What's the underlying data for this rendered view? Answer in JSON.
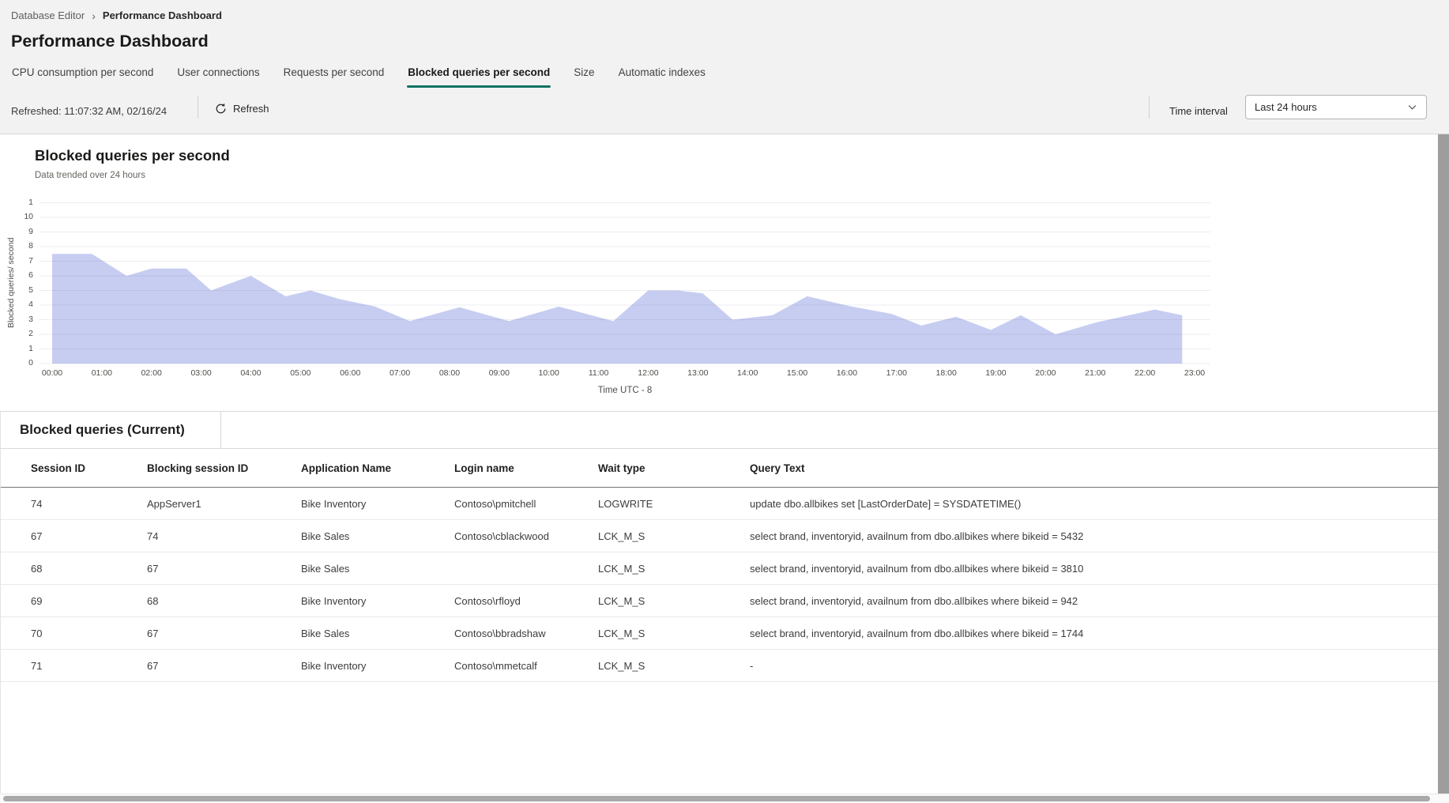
{
  "breadcrumb": {
    "items": [
      "Database Editor",
      "Performance Dashboard"
    ]
  },
  "page": {
    "title": "Performance Dashboard"
  },
  "tabs": {
    "active_index": 3,
    "items": [
      {
        "label": "CPU consumption per second"
      },
      {
        "label": "User connections"
      },
      {
        "label": "Requests per second"
      },
      {
        "label": "Blocked queries per second"
      },
      {
        "label": "Size"
      },
      {
        "label": "Automatic indexes"
      }
    ]
  },
  "toolbar": {
    "refreshed_label": "Refreshed: 11:07:32 AM, 02/16/24",
    "refresh_label": "Refresh",
    "time_interval_label": "Time interval",
    "time_interval_value": "Last 24 hours"
  },
  "icons": {
    "refresh": "circular-arrow",
    "dropdown": "chevron-down",
    "breadcrumb_separator": "chevron-right"
  },
  "colors": {
    "accent_teal_underline": "#0f7263",
    "chart_area_fill": "#c7cdf1",
    "header_background": "#f2f2f2",
    "gridline": "#ececec"
  },
  "chart_data": {
    "type": "area",
    "title": "Blocked queries per second",
    "subtitle": "Data trended over 24 hours",
    "ylabel": "Blocked queries/ second",
    "xlabel": "Time UTC - 8",
    "x_unit": "hours_after_midnight",
    "x": [
      0,
      0.8,
      1.5,
      2.0,
      2.7,
      3.2,
      4.0,
      4.7,
      5.2,
      5.8,
      6.5,
      7.2,
      8.2,
      9.2,
      10.2,
      11.3,
      12.0,
      12.6,
      13.1,
      13.7,
      14.5,
      15.2,
      16.1,
      16.9,
      17.5,
      18.2,
      18.9,
      19.5,
      20.2,
      21.0,
      22.2,
      22.75
    ],
    "values": [
      7.5,
      7.5,
      6.0,
      6.5,
      6.5,
      5.0,
      6.0,
      4.6,
      5.0,
      4.4,
      3.9,
      2.9,
      3.85,
      2.9,
      3.9,
      2.9,
      5.0,
      5.0,
      4.8,
      3.0,
      3.3,
      4.6,
      3.9,
      3.4,
      2.6,
      3.2,
      2.3,
      3.3,
      2.0,
      2.8,
      3.7,
      3.3
    ],
    "x_tick_labels": [
      "00:00",
      "01:00",
      "02:00",
      "03:00",
      "04:00",
      "05:00",
      "06:00",
      "07:00",
      "08:00",
      "09:00",
      "10:00",
      "11:00",
      "12:00",
      "13:00",
      "14:00",
      "15:00",
      "16:00",
      "17:00",
      "18:00",
      "19:00",
      "20:00",
      "21:00",
      "22:00",
      "23:00"
    ],
    "y_tick_labels_top_to_bottom": [
      "1",
      "10",
      "9",
      "8",
      "7",
      "6",
      "5",
      "4",
      "3",
      "2",
      "1",
      "0"
    ],
    "ylim": [
      0,
      11
    ],
    "xlim": [
      0,
      23.35
    ],
    "grid": true,
    "legend": false
  },
  "section": {
    "title": "Blocked queries (Current)"
  },
  "table": {
    "columns": [
      "Session ID",
      "Blocking session ID",
      "Application Name",
      "Login name",
      "Wait type",
      "Query Text"
    ],
    "rows": [
      [
        "74",
        "AppServer1",
        "Bike Inventory",
        "Contoso\\pmitchell",
        "LOGWRITE",
        "update  dbo.allbikes  set [LastOrderDate] = SYSDATETIME()"
      ],
      [
        "67",
        "74",
        "Bike Sales",
        "Contoso\\cblackwood",
        "LCK_M_S",
        "select brand, inventoryid, availnum  from dbo.allbikes where bikeid = 5432"
      ],
      [
        "68",
        "67",
        "Bike Sales",
        "",
        "LCK_M_S",
        "select brand, inventoryid, availnum  from dbo.allbikes where bikeid = 3810"
      ],
      [
        "69",
        "68",
        "Bike Inventory",
        "Contoso\\rfloyd",
        "LCK_M_S",
        "select brand, inventoryid, availnum  from dbo.allbikes where bikeid = 942"
      ],
      [
        "70",
        "67",
        "Bike Sales",
        "Contoso\\bbradshaw",
        "LCK_M_S",
        "select brand, inventoryid, availnum  from dbo.allbikes where bikeid = 1744"
      ],
      [
        "71",
        "67",
        "Bike Inventory",
        "Contoso\\mmetcalf",
        "LCK_M_S",
        "-"
      ]
    ]
  }
}
